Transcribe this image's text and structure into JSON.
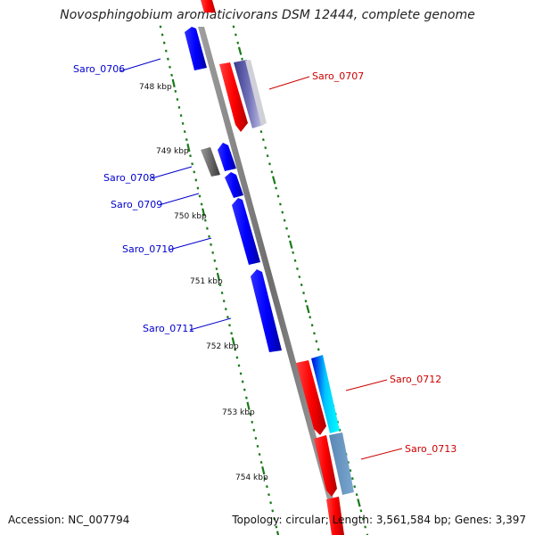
{
  "title": "Novosphingobium aromaticivorans DSM 12444, complete genome",
  "footer": {
    "accession": "Accession: NC_007794",
    "topology": "Topology: circular; Length: 3,561,584 bp; Genes: 3,397"
  },
  "scale_labels": [
    "748 kbp",
    "749 kbp",
    "750 kbp",
    "751 kbp",
    "752 kbp",
    "753 kbp",
    "754 kbp"
  ],
  "colors": {
    "forward_label": "#0000cc",
    "reverse_label": "#cc0000",
    "backbone": "#808080",
    "tick": "#1a7a1a"
  },
  "genes": [
    {
      "name": "Saro_0706",
      "strand": "+"
    },
    {
      "name": "Saro_0707",
      "strand": "-"
    },
    {
      "name": "Saro_0708",
      "strand": "+"
    },
    {
      "name": "Saro_0709",
      "strand": "+"
    },
    {
      "name": "Saro_0710",
      "strand": "+"
    },
    {
      "name": "Saro_0711",
      "strand": "+"
    },
    {
      "name": "Saro_0712",
      "strand": "-"
    },
    {
      "name": "Saro_0713",
      "strand": "-"
    }
  ]
}
